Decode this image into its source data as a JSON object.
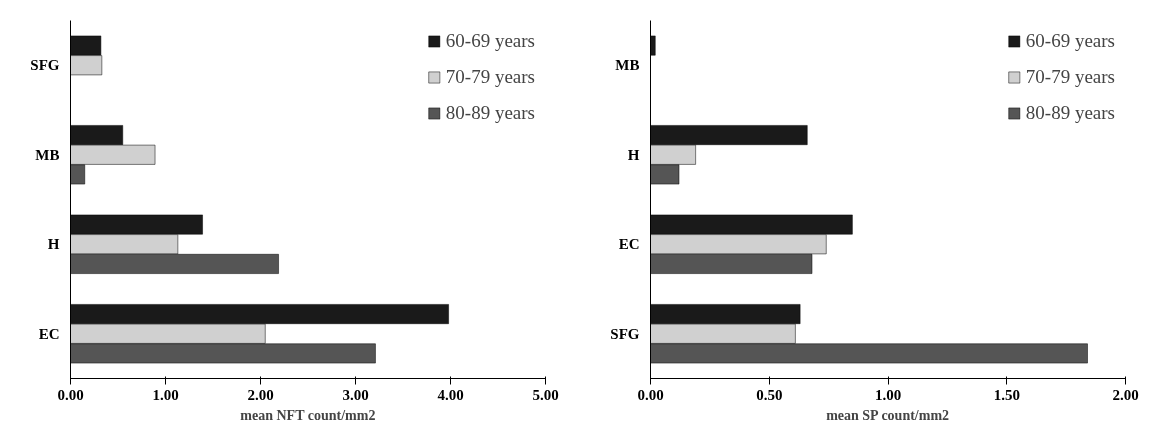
{
  "chart_data": [
    {
      "type": "bar",
      "orientation": "horizontal",
      "categories": [
        "SFG",
        "MB",
        "H",
        "EC"
      ],
      "xlabel": "mean NFT count/mm2",
      "xlim": [
        0,
        5
      ],
      "xticks": [
        {
          "value": 0,
          "label": "0.00"
        },
        {
          "value": 1,
          "label": "1.00"
        },
        {
          "value": 2,
          "label": "2.00"
        },
        {
          "value": 3,
          "label": "3.00"
        },
        {
          "value": 4,
          "label": "4.00"
        },
        {
          "value": 5,
          "label": "5.00"
        }
      ],
      "grid": false,
      "legend": "top right",
      "series": [
        {
          "name": "60-69 years",
          "color": "#1a1a1a",
          "values": [
            0.32,
            0.55,
            1.39,
            3.98
          ]
        },
        {
          "name": "70-79 years",
          "color": "#d0d0d0",
          "values": [
            0.33,
            0.89,
            1.13,
            2.05
          ]
        },
        {
          "name": "80-89 years",
          "color": "#555555",
          "values": [
            null,
            0.15,
            2.19,
            3.21
          ]
        }
      ]
    },
    {
      "type": "bar",
      "orientation": "horizontal",
      "categories": [
        "MB",
        "H",
        "EC",
        "SFG"
      ],
      "xlabel": "mean SP count/mm2",
      "xlim": [
        0,
        2
      ],
      "xticks": [
        {
          "value": 0,
          "label": "0.00"
        },
        {
          "value": 0.5,
          "label": "0.50"
        },
        {
          "value": 1,
          "label": "1.00"
        },
        {
          "value": 1.5,
          "label": "1.50"
        },
        {
          "value": 2,
          "label": "2.00"
        }
      ],
      "grid": false,
      "legend": "top right",
      "series": [
        {
          "name": "60-69 years",
          "color": "#1a1a1a",
          "values": [
            0.02,
            0.66,
            0.85,
            0.63
          ]
        },
        {
          "name": "70-79 years",
          "color": "#d0d0d0",
          "values": [
            null,
            0.19,
            0.74,
            0.61
          ]
        },
        {
          "name": "80-89 years",
          "color": "#555555",
          "values": [
            null,
            0.12,
            0.68,
            1.84
          ]
        }
      ]
    }
  ]
}
